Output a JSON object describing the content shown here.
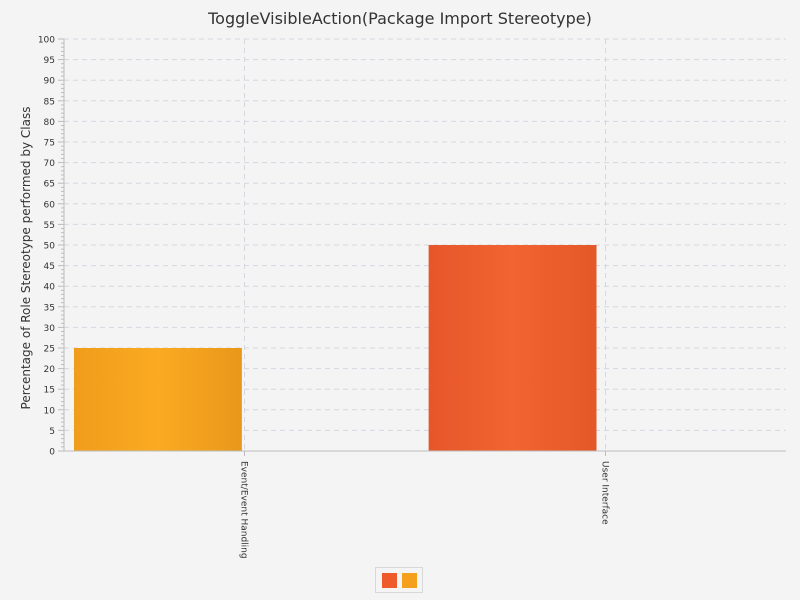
{
  "chart_data": {
    "type": "bar",
    "title": "ToggleVisibleAction(Package Import Stereotype)",
    "xlabel": "",
    "ylabel": "Percentage of Role Stereotype performed by Class",
    "categories": [
      "Event/Event Handling",
      "User Interface"
    ],
    "series": [
      {
        "values": [
          0,
          50
        ],
        "color": "#ee5a2a"
      },
      {
        "values": [
          25,
          0
        ],
        "color": "#f5a01c"
      }
    ],
    "ylim": [
      0,
      100
    ],
    "ytick_step": 5,
    "grid": true,
    "legend": "bottom"
  }
}
